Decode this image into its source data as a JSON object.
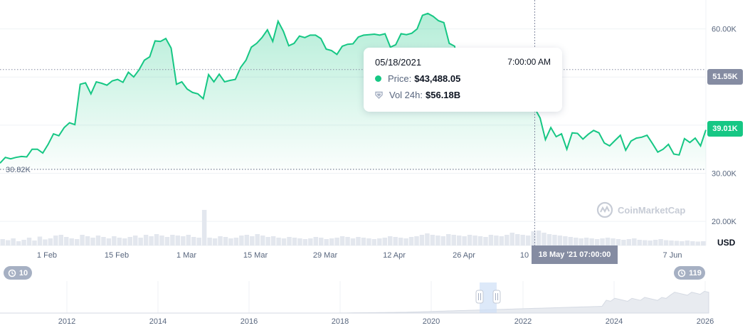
{
  "chart_data": {
    "type": "area",
    "currency": "USD",
    "y_ticks": [
      "60.00K",
      "30.00K",
      "20.00K"
    ],
    "ylim": [
      15000,
      66000
    ],
    "reference_lines": {
      "high_label": "51.55K",
      "low_label": "30.82K",
      "current_label": "39.01K"
    },
    "x_ticks": [
      "1 Feb",
      "15 Feb",
      "1 Mar",
      "15 Mar",
      "29 Mar",
      "12 Apr",
      "26 Apr",
      "10",
      "7 Jun"
    ],
    "crosshair_label": "18 May '21 07:00:00",
    "tooltip": {
      "date": "05/18/2021",
      "time": "7:00:00 AM",
      "price_label": "Price:",
      "price_value": "$43,488.05",
      "volume_label": "Vol 24h:",
      "volume_value": "$56.18B"
    },
    "series": [
      {
        "values": [
          32100,
          33300,
          33000,
          33300,
          33500,
          33400,
          35000,
          35000,
          34200,
          36000,
          38200,
          37800,
          39500,
          40500,
          40100,
          48500,
          48800,
          46500,
          49000,
          48700,
          48300,
          49200,
          49500,
          48900,
          51000,
          50000,
          51500,
          53500,
          54200,
          57500,
          57400,
          58000,
          56000,
          48500,
          49000,
          47500,
          46800,
          46500,
          45500,
          50500,
          49000,
          50600,
          49000,
          49300,
          49500,
          52000,
          53500,
          56200,
          57000,
          58200,
          59800,
          57400,
          61600,
          59500,
          56500,
          57000,
          58500,
          58200,
          58700,
          58700,
          58000,
          55800,
          55500,
          54700,
          56400,
          56800,
          56900,
          58300,
          58700,
          58800,
          58900,
          58700,
          59000,
          56200,
          56700,
          59000,
          58800,
          59100,
          60000,
          62800,
          63200,
          62600,
          61700,
          61300,
          57000,
          56400,
          51500,
          50300,
          49200,
          48500,
          50200,
          48800,
          46800,
          47000,
          49000,
          47200,
          48200,
          47000,
          46700,
          46000,
          43488,
          41500,
          37000,
          39500,
          37600,
          38200,
          35000,
          38400,
          38300,
          37100,
          38100,
          38900,
          38400,
          36300,
          35700,
          36800,
          37900,
          34800,
          36700,
          37300,
          37500,
          37900,
          36200,
          34400,
          35000,
          36000,
          34000,
          33800,
          37200,
          36400,
          37300,
          35700,
          39010
        ]
      }
    ],
    "volume": [
      0.18,
      0.15,
      0.2,
      0.12,
      0.16,
      0.22,
      0.14,
      0.25,
      0.17,
      0.2,
      0.28,
      0.3,
      0.24,
      0.2,
      0.18,
      0.3,
      0.26,
      0.22,
      0.28,
      0.24,
      0.2,
      0.26,
      0.22,
      0.2,
      0.24,
      0.28,
      0.22,
      0.3,
      0.26,
      0.32,
      0.28,
      0.24,
      0.3,
      0.28,
      0.26,
      0.3,
      0.24,
      0.22,
      1.0,
      0.22,
      0.2,
      0.26,
      0.24,
      0.2,
      0.22,
      0.28,
      0.3,
      0.26,
      0.32,
      0.28,
      0.24,
      0.26,
      0.22,
      0.2,
      0.24,
      0.22,
      0.2,
      0.18,
      0.2,
      0.24,
      0.22,
      0.18,
      0.2,
      0.22,
      0.26,
      0.24,
      0.2,
      0.24,
      0.22,
      0.2,
      0.18,
      0.2,
      0.22,
      0.26,
      0.24,
      0.22,
      0.2,
      0.24,
      0.26,
      0.3,
      0.34,
      0.3,
      0.28,
      0.26,
      0.32,
      0.3,
      0.28,
      0.26,
      0.3,
      0.28,
      0.26,
      0.24,
      0.3,
      0.28,
      0.26,
      0.3,
      0.36,
      0.32,
      0.3,
      0.28,
      0.4,
      0.42,
      0.36,
      0.32,
      0.3,
      0.28,
      0.26,
      0.24,
      0.22,
      0.2,
      0.22,
      0.2,
      0.18,
      0.2,
      0.22,
      0.2,
      0.18,
      0.16,
      0.18,
      0.2,
      0.16,
      0.15,
      0.14,
      0.16,
      0.18,
      0.15,
      0.14,
      0.13,
      0.12,
      0.14,
      0.12,
      0.11,
      0.12
    ],
    "range_selector": {
      "year_ticks": [
        "2012",
        "2014",
        "2016",
        "2018",
        "2020",
        "2022",
        "2024",
        "2026"
      ],
      "left_handle_label": "10",
      "right_handle_label": "119"
    },
    "colors": {
      "line": "#16c784",
      "high_badge": "#858ca2",
      "current_badge": "#16c784",
      "grid": "#eff2f5",
      "volume": "#e3e7ee"
    },
    "watermark": "CoinMarketCap"
  }
}
